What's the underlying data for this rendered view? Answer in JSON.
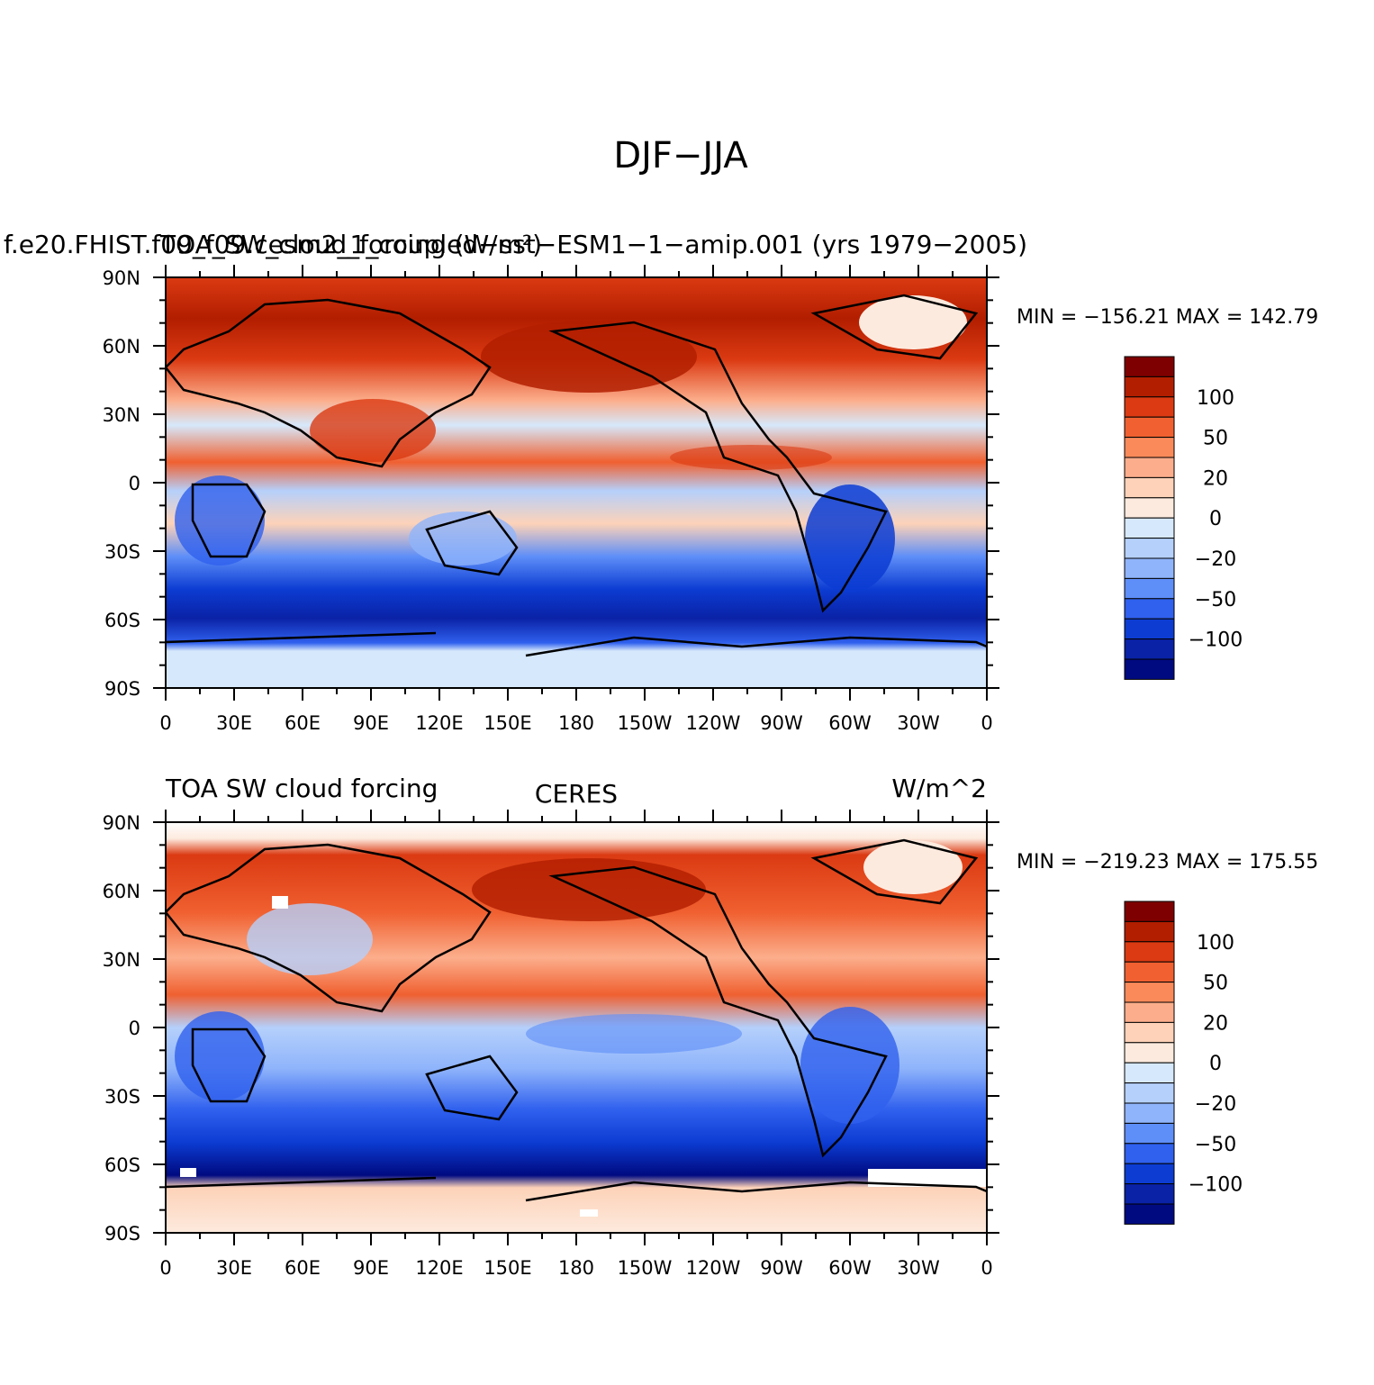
{
  "title": "DJF−JJA",
  "colorbar": {
    "labels": [
      "100",
      "50",
      "20",
      "0",
      "−20",
      "−50",
      "−100"
    ],
    "colors": [
      "#7f0000",
      "#b21e00",
      "#db3a12",
      "#f06030",
      "#fb8a5a",
      "#fcae8c",
      "#fdd2b8",
      "#fdeade",
      "#d6e8fb",
      "#b5d0fb",
      "#8fb4fb",
      "#5e8ef8",
      "#2f60ee",
      "#0c3cd2",
      "#0a22a6",
      "#000a80"
    ]
  },
  "x_ticks": [
    "0",
    "30E",
    "60E",
    "90E",
    "120E",
    "150E",
    "180",
    "150W",
    "120W",
    "90W",
    "60W",
    "30W",
    "0"
  ],
  "y_ticks": [
    "90N",
    "60N",
    "30N",
    "0",
    "30S",
    "60S",
    "90S"
  ],
  "panels": [
    {
      "id": "model",
      "header_left": "f.e20.FHIST.f09_f09.cesm2_1_coupled−sst−ESM1−1−amip.001  (yrs 1979−2005)",
      "header_overlay": "TOA_SW_cloud_forcing                        (W/m²)",
      "header_center": "",
      "header_right": "",
      "stats": "MIN = −156.21  MAX = 142.79"
    },
    {
      "id": "obs",
      "header_left": "TOA SW cloud forcing",
      "header_overlay": "",
      "header_center": "CERES",
      "header_right": "W/m^2",
      "stats": "MIN = −219.23  MAX = 175.55"
    }
  ]
}
